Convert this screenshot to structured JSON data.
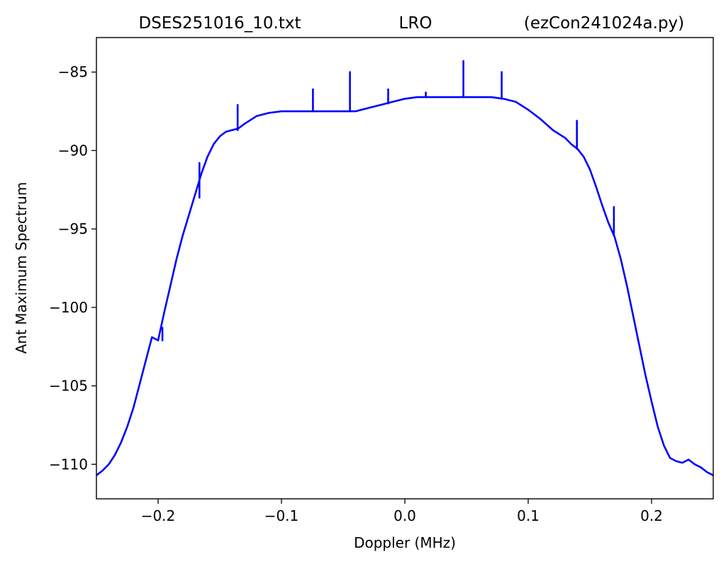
{
  "chart_data": {
    "type": "line",
    "title_left": "DSES251016_10.txt",
    "title_center": "LRO",
    "title_right": "(ezCon241024a.py)",
    "xlabel": "Doppler (MHz)",
    "ylabel": "Ant Maximum Spectrum",
    "xlim": [
      -0.25,
      0.25
    ],
    "ylim": [
      -112.2,
      -82.8
    ],
    "xticks": [
      {
        "value": -0.2,
        "label": "−0.2"
      },
      {
        "value": -0.1,
        "label": "−0.1"
      },
      {
        "value": 0.0,
        "label": "0.0"
      },
      {
        "value": 0.1,
        "label": "0.1"
      },
      {
        "value": 0.2,
        "label": "0.2"
      }
    ],
    "yticks": [
      {
        "value": -85,
        "label": "−85"
      },
      {
        "value": -90,
        "label": "−90"
      },
      {
        "value": -95,
        "label": "−95"
      },
      {
        "value": -100,
        "label": "−100"
      },
      {
        "value": -105,
        "label": "−105"
      },
      {
        "value": -110,
        "label": "−110"
      }
    ],
    "grid": false,
    "line_color": "#0000ff",
    "series": [
      {
        "x": [
          -0.25,
          -0.245,
          -0.24,
          -0.235,
          -0.23,
          -0.225,
          -0.22,
          -0.215,
          -0.21,
          -0.205,
          -0.2,
          -0.195,
          -0.19,
          -0.185,
          -0.18,
          -0.175,
          -0.17,
          -0.165,
          -0.16,
          -0.155,
          -0.15,
          -0.145,
          -0.14,
          -0.135,
          -0.13,
          -0.12,
          -0.11,
          -0.1,
          -0.09,
          -0.08,
          -0.07,
          -0.06,
          -0.05,
          -0.04,
          -0.03,
          -0.02,
          -0.01,
          0.0,
          0.01,
          0.02,
          0.03,
          0.04,
          0.05,
          0.06,
          0.07,
          0.08,
          0.09,
          0.1,
          0.11,
          0.12,
          0.13,
          0.135,
          0.14,
          0.145,
          0.15,
          0.155,
          0.16,
          0.165,
          0.17,
          0.175,
          0.18,
          0.185,
          0.19,
          0.195,
          0.2,
          0.205,
          0.21,
          0.215,
          0.22,
          0.225,
          0.23,
          0.235,
          0.24,
          0.245,
          0.25
        ],
        "y": [
          -110.7,
          -110.4,
          -110.0,
          -109.4,
          -108.6,
          -107.6,
          -106.4,
          -104.9,
          -103.4,
          -101.9,
          -102.1,
          -100.3,
          -98.6,
          -96.9,
          -95.4,
          -94.1,
          -92.8,
          -91.5,
          -90.4,
          -89.6,
          -89.1,
          -88.8,
          -88.7,
          -88.6,
          -88.3,
          -87.8,
          -87.6,
          -87.5,
          -87.5,
          -87.5,
          -87.5,
          -87.5,
          -87.5,
          -87.5,
          -87.3,
          -87.1,
          -86.9,
          -86.7,
          -86.6,
          -86.6,
          -86.6,
          -86.6,
          -86.6,
          -86.6,
          -86.6,
          -86.7,
          -86.9,
          -87.4,
          -88.0,
          -88.7,
          -89.2,
          -89.6,
          -89.9,
          -90.4,
          -91.2,
          -92.3,
          -93.5,
          -94.6,
          -95.5,
          -96.9,
          -98.6,
          -100.5,
          -102.4,
          -104.3,
          -106.0,
          -107.6,
          -108.8,
          -109.6,
          -109.8,
          -109.9,
          -109.7,
          -110.0,
          -110.2,
          -110.5,
          -110.7
        ]
      }
    ],
    "spikes": [
      {
        "x": -0.1965,
        "base": -102.1,
        "peak": -101.3
      },
      {
        "x": -0.1665,
        "base": -93.0,
        "peak": -90.8
      },
      {
        "x": -0.1355,
        "base": -88.7,
        "peak": -87.1
      },
      {
        "x": -0.0745,
        "base": -87.5,
        "peak": -86.1
      },
      {
        "x": -0.0445,
        "base": -87.5,
        "peak": -85.0
      },
      {
        "x": -0.0135,
        "base": -87.0,
        "peak": -86.1
      },
      {
        "x": 0.017,
        "base": -86.6,
        "peak": -86.3
      },
      {
        "x": 0.0475,
        "base": -86.6,
        "peak": -84.3
      },
      {
        "x": 0.0785,
        "base": -86.7,
        "peak": -85.0
      },
      {
        "x": 0.1395,
        "base": -89.9,
        "peak": -88.1
      },
      {
        "x": 0.1695,
        "base": -95.4,
        "peak": -93.6
      }
    ]
  }
}
